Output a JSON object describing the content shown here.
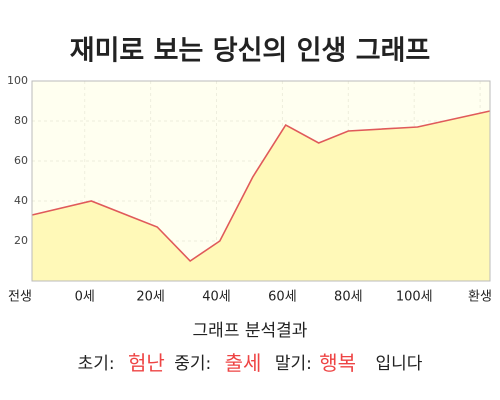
{
  "chart_data": {
    "type": "area",
    "title": "재미로 보는 당신의 인생 그래프",
    "x": [
      -16,
      2,
      22,
      32,
      41,
      51,
      61,
      71,
      80,
      101,
      123
    ],
    "series": [
      {
        "name": "인생",
        "color": "#e05a5a",
        "fill": "#fff9b8",
        "values": [
          33,
          40,
          27,
          10,
          20,
          52,
          78,
          69,
          75,
          77,
          85
        ]
      }
    ],
    "xlim": [
      -16,
      123
    ],
    "xticks": [
      {
        "value": -20,
        "label": "전생"
      },
      {
        "value": 0,
        "label": "0세"
      },
      {
        "value": 20,
        "label": "20세"
      },
      {
        "value": 40,
        "label": "40세"
      },
      {
        "value": 60,
        "label": "60세"
      },
      {
        "value": 80,
        "label": "80세"
      },
      {
        "value": 100,
        "label": "100세"
      },
      {
        "value": 120,
        "label": "환생"
      }
    ],
    "ylim": [
      0,
      100
    ],
    "yticks": [
      20,
      40,
      60,
      80,
      100
    ],
    "grid": true
  },
  "analysis": {
    "title": "그래프 분석결과",
    "parts": [
      {
        "label": "초기:",
        "value": "험난"
      },
      {
        "label": "중기:",
        "value": "출세"
      },
      {
        "label": "말기:",
        "value": "행복"
      }
    ],
    "ending": "입니다"
  }
}
